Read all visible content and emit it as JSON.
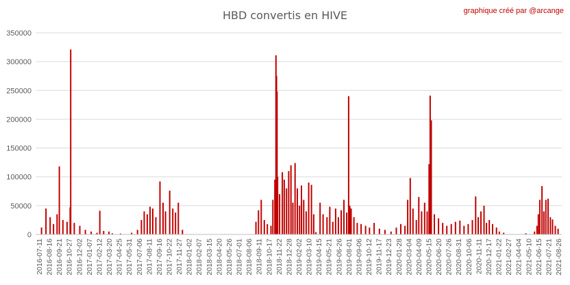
{
  "chart_data": {
    "type": "bar",
    "title": "HBD convertis en HIVE",
    "credit": "graphique créé par @arcange",
    "xlabel": "",
    "ylabel": "",
    "ylim": [
      0,
      350000
    ],
    "ytick_values": [
      0,
      50000,
      100000,
      150000,
      200000,
      250000,
      300000,
      350000
    ],
    "ytick_labels": [
      "0",
      "50000",
      "100000",
      "150000",
      "200000",
      "250000",
      "300000",
      "350000"
    ],
    "xtick_labels": [
      "2016-07-11",
      "2016-08-16",
      "2016-09-21",
      "2016-10-27",
      "2016-12-02",
      "2017-01-07",
      "2017-02-12",
      "2017-03-20",
      "2017-04-25",
      "2017-05-31",
      "2017-07-06",
      "2017-08-11",
      "2017-09-16",
      "2017-10-22",
      "2017-11-27",
      "2018-01-02",
      "2018-02-07",
      "2018-03-15",
      "2018-04-20",
      "2018-05-26",
      "2018-07-01",
      "2018-08-06",
      "2018-09-11",
      "2018-10-17",
      "2018-11-22",
      "2018-12-28",
      "2019-02-02",
      "2019-03-10",
      "2019-04-15",
      "2019-05-21",
      "2019-06-26",
      "2019-08-01",
      "2019-09-06",
      "2019-10-12",
      "2019-11-17",
      "2019-12-23",
      "2020-01-28",
      "2020-03-04",
      "2020-04-09",
      "2020-05-15",
      "2020-06-20",
      "2020-07-26",
      "2020-08-31",
      "2020-10-06",
      "2020-11-11",
      "2020-12-17",
      "2021-01-22",
      "2021-02-27",
      "2021-04-04",
      "2021-05-10",
      "2021-06-15",
      "2021-07-21",
      "2021-08-26"
    ],
    "grid": "horizontal",
    "bar_color": "#c00000",
    "series": [
      {
        "x": [
          "2016-07-20",
          "2016-08-05",
          "2016-08-20",
          "2016-09-01",
          "2016-09-14",
          "2016-09-22",
          "2016-10-05",
          "2016-10-20",
          "2016-10-31",
          "2016-11-02",
          "2016-11-15",
          "2016-12-05",
          "2016-12-25",
          "2017-01-15",
          "2017-02-05",
          "2017-02-15",
          "2017-03-01",
          "2017-03-20",
          "2017-04-01",
          "2017-05-01",
          "2017-06-10",
          "2017-07-01",
          "2017-07-15",
          "2017-07-25",
          "2017-08-05",
          "2017-08-15",
          "2017-08-25",
          "2017-09-05",
          "2017-09-20",
          "2017-10-01",
          "2017-10-10",
          "2017-10-25",
          "2017-11-05",
          "2017-11-15",
          "2017-11-25",
          "2017-12-10",
          "2018-09-01",
          "2018-09-10",
          "2018-09-20",
          "2018-10-01",
          "2018-10-12",
          "2018-10-25",
          "2018-11-01",
          "2018-11-08",
          "2018-11-12",
          "2018-11-14",
          "2018-11-16",
          "2018-11-18",
          "2018-11-25",
          "2018-12-05",
          "2018-12-12",
          "2018-12-20",
          "2018-12-28",
          "2019-01-05",
          "2019-01-12",
          "2019-01-20",
          "2019-01-28",
          "2019-02-05",
          "2019-02-12",
          "2019-02-20",
          "2019-03-01",
          "2019-03-10",
          "2019-03-20",
          "2019-03-28",
          "2019-04-05",
          "2019-04-20",
          "2019-05-01",
          "2019-05-15",
          "2019-05-25",
          "2019-06-05",
          "2019-06-15",
          "2019-06-25",
          "2019-07-05",
          "2019-07-15",
          "2019-07-25",
          "2019-08-01",
          "2019-08-05",
          "2019-08-10",
          "2019-08-20",
          "2019-09-01",
          "2019-09-15",
          "2019-10-01",
          "2019-10-15",
          "2019-11-01",
          "2019-11-20",
          "2019-12-10",
          "2020-01-01",
          "2020-01-20",
          "2020-02-05",
          "2020-02-20",
          "2020-03-01",
          "2020-03-10",
          "2020-03-20",
          "2020-04-01",
          "2020-04-10",
          "2020-04-20",
          "2020-05-01",
          "2020-05-10",
          "2020-05-17",
          "2020-05-21",
          "2020-05-25",
          "2020-06-05",
          "2020-06-20",
          "2020-07-05",
          "2020-07-20",
          "2020-08-05",
          "2020-08-20",
          "2020-09-05",
          "2020-09-20",
          "2020-10-05",
          "2020-10-20",
          "2020-11-01",
          "2020-11-10",
          "2020-11-20",
          "2020-12-01",
          "2020-12-10",
          "2020-12-20",
          "2021-01-01",
          "2021-01-15",
          "2021-01-25",
          "2021-02-10",
          "2021-05-01",
          "2021-06-01",
          "2021-06-10",
          "2021-06-15",
          "2021-06-20",
          "2021-06-28",
          "2021-07-05",
          "2021-07-12",
          "2021-07-20",
          "2021-07-28",
          "2021-08-05",
          "2021-08-15",
          "2021-08-25"
        ],
        "values": [
          12000,
          45000,
          30000,
          18000,
          35000,
          118000,
          25000,
          22000,
          47000,
          321000,
          20000,
          15000,
          8000,
          5000,
          3000,
          41000,
          6000,
          5000,
          2000,
          1500,
          3000,
          8000,
          25000,
          40000,
          35000,
          48000,
          45000,
          30000,
          92000,
          55000,
          40000,
          76000,
          45000,
          38000,
          55000,
          8000,
          22000,
          42000,
          60000,
          25000,
          18000,
          15000,
          60000,
          95000,
          311000,
          275000,
          248000,
          100000,
          70000,
          108000,
          95000,
          80000,
          110000,
          120000,
          55000,
          124000,
          80000,
          50000,
          85000,
          60000,
          40000,
          90000,
          86000,
          35000,
          4000,
          55000,
          35000,
          30000,
          48000,
          22000,
          45000,
          30000,
          42000,
          60000,
          38000,
          240000,
          50000,
          45000,
          30000,
          20000,
          18000,
          15000,
          12000,
          20000,
          10000,
          8000,
          5000,
          12000,
          18000,
          15000,
          60000,
          98000,
          45000,
          25000,
          65000,
          40000,
          55000,
          40000,
          122000,
          241000,
          198000,
          35000,
          28000,
          20000,
          15000,
          18000,
          22000,
          24000,
          15000,
          18000,
          25000,
          66000,
          30000,
          40000,
          50000,
          20000,
          25000,
          18000,
          12000,
          5000,
          3000,
          2000,
          5000,
          15000,
          35000,
          60000,
          84000,
          40000,
          60000,
          62000,
          30000,
          26000,
          15000,
          10000
        ]
      }
    ]
  }
}
